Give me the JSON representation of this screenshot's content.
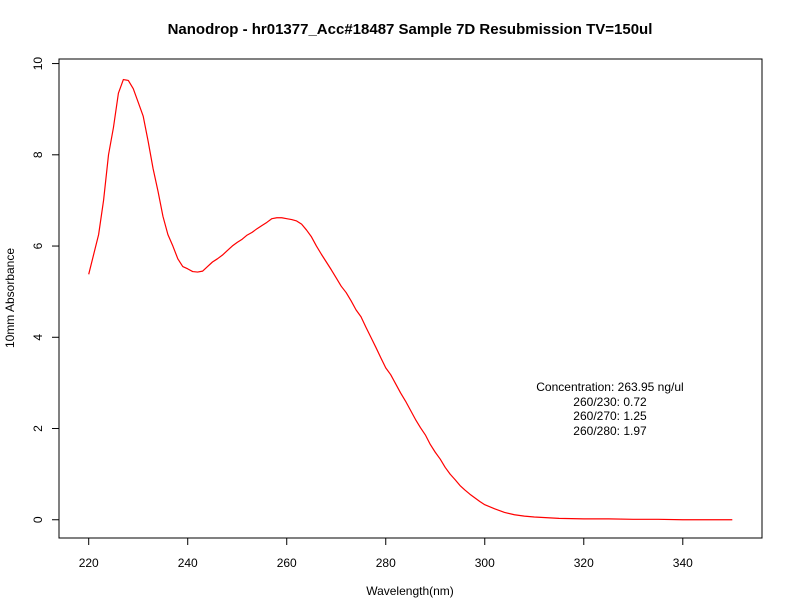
{
  "chart_data": {
    "type": "line",
    "title": "Nanodrop - hr01377_Acc#18487 Sample 7D Resubmission TV=150ul",
    "xlabel": "Wavelength(nm)",
    "ylabel": "10mm Absorbance",
    "xlim": [
      214,
      356
    ],
    "ylim": [
      -0.4,
      10.1
    ],
    "x_ticks": [
      220,
      240,
      260,
      280,
      300,
      320,
      340
    ],
    "y_ticks": [
      0,
      2,
      4,
      6,
      8,
      10
    ],
    "grid": false,
    "series": [
      {
        "color": "#ff0000",
        "x": [
          220,
          222,
          223,
          224,
          225,
          226,
          227,
          228,
          229,
          230,
          231,
          232,
          233,
          234,
          235,
          236,
          237,
          238,
          239,
          240,
          241,
          242,
          243,
          244,
          245,
          246,
          247,
          248,
          249,
          250,
          251,
          252,
          253,
          254,
          255,
          256,
          257,
          258,
          259,
          260,
          261,
          262,
          263,
          264,
          265,
          266,
          267,
          268,
          269,
          270,
          271,
          272,
          273,
          274,
          275,
          276,
          277,
          278,
          279,
          280,
          281,
          282,
          283,
          284,
          285,
          286,
          287,
          288,
          289,
          290,
          291,
          292,
          293,
          294,
          295,
          296,
          297,
          298,
          299,
          300,
          302,
          304,
          306,
          308,
          310,
          315,
          320,
          325,
          330,
          335,
          340,
          345,
          350
        ],
        "y": [
          5.38,
          6.25,
          7.0,
          8.0,
          8.6,
          9.35,
          9.65,
          9.63,
          9.45,
          9.15,
          8.85,
          8.3,
          7.7,
          7.2,
          6.65,
          6.25,
          6.0,
          5.72,
          5.55,
          5.5,
          5.44,
          5.43,
          5.45,
          5.55,
          5.65,
          5.72,
          5.8,
          5.9,
          6.0,
          6.08,
          6.15,
          6.24,
          6.3,
          6.38,
          6.45,
          6.52,
          6.6,
          6.62,
          6.62,
          6.6,
          6.58,
          6.55,
          6.48,
          6.35,
          6.2,
          6.0,
          5.82,
          5.65,
          5.48,
          5.3,
          5.12,
          4.98,
          4.8,
          4.6,
          4.45,
          4.22,
          4.0,
          3.78,
          3.55,
          3.33,
          3.18,
          2.98,
          2.78,
          2.6,
          2.4,
          2.2,
          2.02,
          1.86,
          1.65,
          1.48,
          1.33,
          1.15,
          1.0,
          0.88,
          0.75,
          0.65,
          0.56,
          0.48,
          0.4,
          0.33,
          0.24,
          0.16,
          0.11,
          0.08,
          0.06,
          0.03,
          0.02,
          0.02,
          0.01,
          0.01,
          0.0,
          0.0,
          0.0
        ]
      }
    ],
    "annotations": [
      "Concentration: 263.95 ng/ul",
      "260/230: 0.72",
      "260/270: 1.25",
      "260/280: 1.97"
    ]
  }
}
